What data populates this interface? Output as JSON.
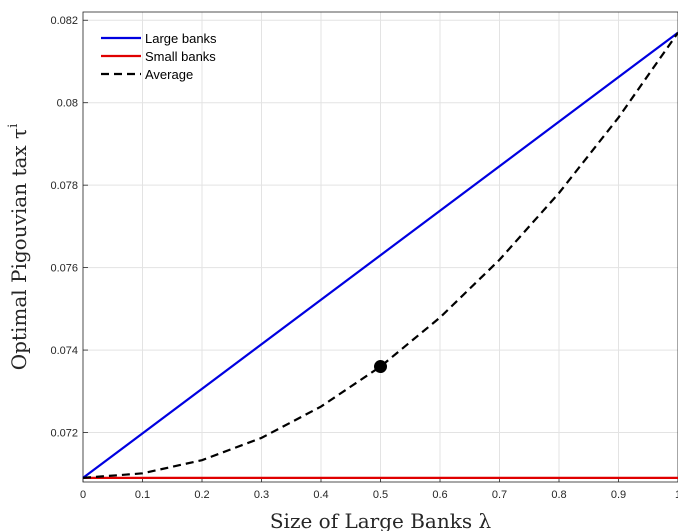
{
  "chart_data": {
    "type": "line",
    "xlabel": "Size of Large Banks λ",
    "ylabel": "Optimal Pigouvian tax τ",
    "ylabel_superscript": "i",
    "xlim": [
      0,
      1
    ],
    "ylim": [
      0.0708,
      0.0822
    ],
    "x_ticks": [
      0,
      0.1,
      0.2,
      0.3,
      0.4,
      0.5,
      0.6,
      0.7,
      0.8,
      0.9,
      1
    ],
    "x_tick_labels": [
      "0",
      "0.1",
      "0.2",
      "0.3",
      "0.4",
      "0.5",
      "0.6",
      "0.7",
      "0.8",
      "0.9",
      "1"
    ],
    "y_ticks": [
      0.072,
      0.074,
      0.076,
      0.078,
      0.08,
      0.082
    ],
    "y_tick_labels": [
      "0.072",
      "0.074",
      "0.076",
      "0.078",
      "0.08",
      "0.082"
    ],
    "grid": true,
    "legend_position": "top-left",
    "series": [
      {
        "name": "Large banks",
        "color": "#0000e0",
        "style": "solid",
        "x": [
          0,
          1
        ],
        "y": [
          0.0709,
          0.0817
        ]
      },
      {
        "name": "Small banks",
        "color": "#e00000",
        "style": "solid",
        "x": [
          0,
          1
        ],
        "y": [
          0.0709,
          0.0709
        ]
      },
      {
        "name": "Average",
        "color": "#000000",
        "style": "dashed",
        "x": [
          0,
          0.1,
          0.2,
          0.3,
          0.4,
          0.5,
          0.6,
          0.7,
          0.8,
          0.9,
          1
        ],
        "y": [
          0.0709,
          0.07101,
          0.07133,
          0.07187,
          0.07263,
          0.0736,
          0.07479,
          0.07619,
          0.07781,
          0.07964,
          0.0817
        ]
      }
    ],
    "marker": {
      "x": 0.5,
      "y": 0.0736,
      "color": "#000000"
    }
  }
}
